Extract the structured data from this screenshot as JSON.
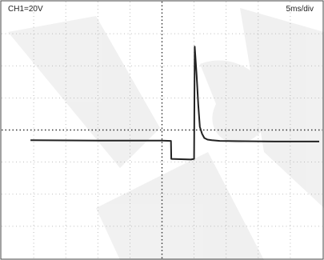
{
  "header": {
    "channel_label": "CH1=20V",
    "timebase_label": "5ms/div"
  },
  "chart_data": {
    "type": "line",
    "title": "",
    "xlabel": "",
    "ylabel": "",
    "x_divisions": 10,
    "y_divisions": 8,
    "grid": "dotted",
    "xlim": [
      -5,
      5
    ],
    "ylim": [
      -4,
      4
    ],
    "series": [
      {
        "name": "",
        "color": "#222222",
        "x": [
          -4.1,
          -2.0,
          0.0,
          0.28,
          0.29,
          0.9,
          1.0,
          1.02,
          1.08,
          1.13,
          1.18,
          1.25,
          1.32,
          1.42,
          1.55,
          1.8,
          2.5,
          3.5,
          4.9
        ],
        "y": [
          -0.32,
          -0.33,
          -0.33,
          -0.34,
          -0.9,
          -0.92,
          -0.9,
          2.6,
          1.7,
          0.8,
          0.1,
          -0.12,
          -0.25,
          -0.3,
          -0.32,
          -0.34,
          -0.35,
          -0.36,
          -0.36
        ]
      }
    ]
  }
}
